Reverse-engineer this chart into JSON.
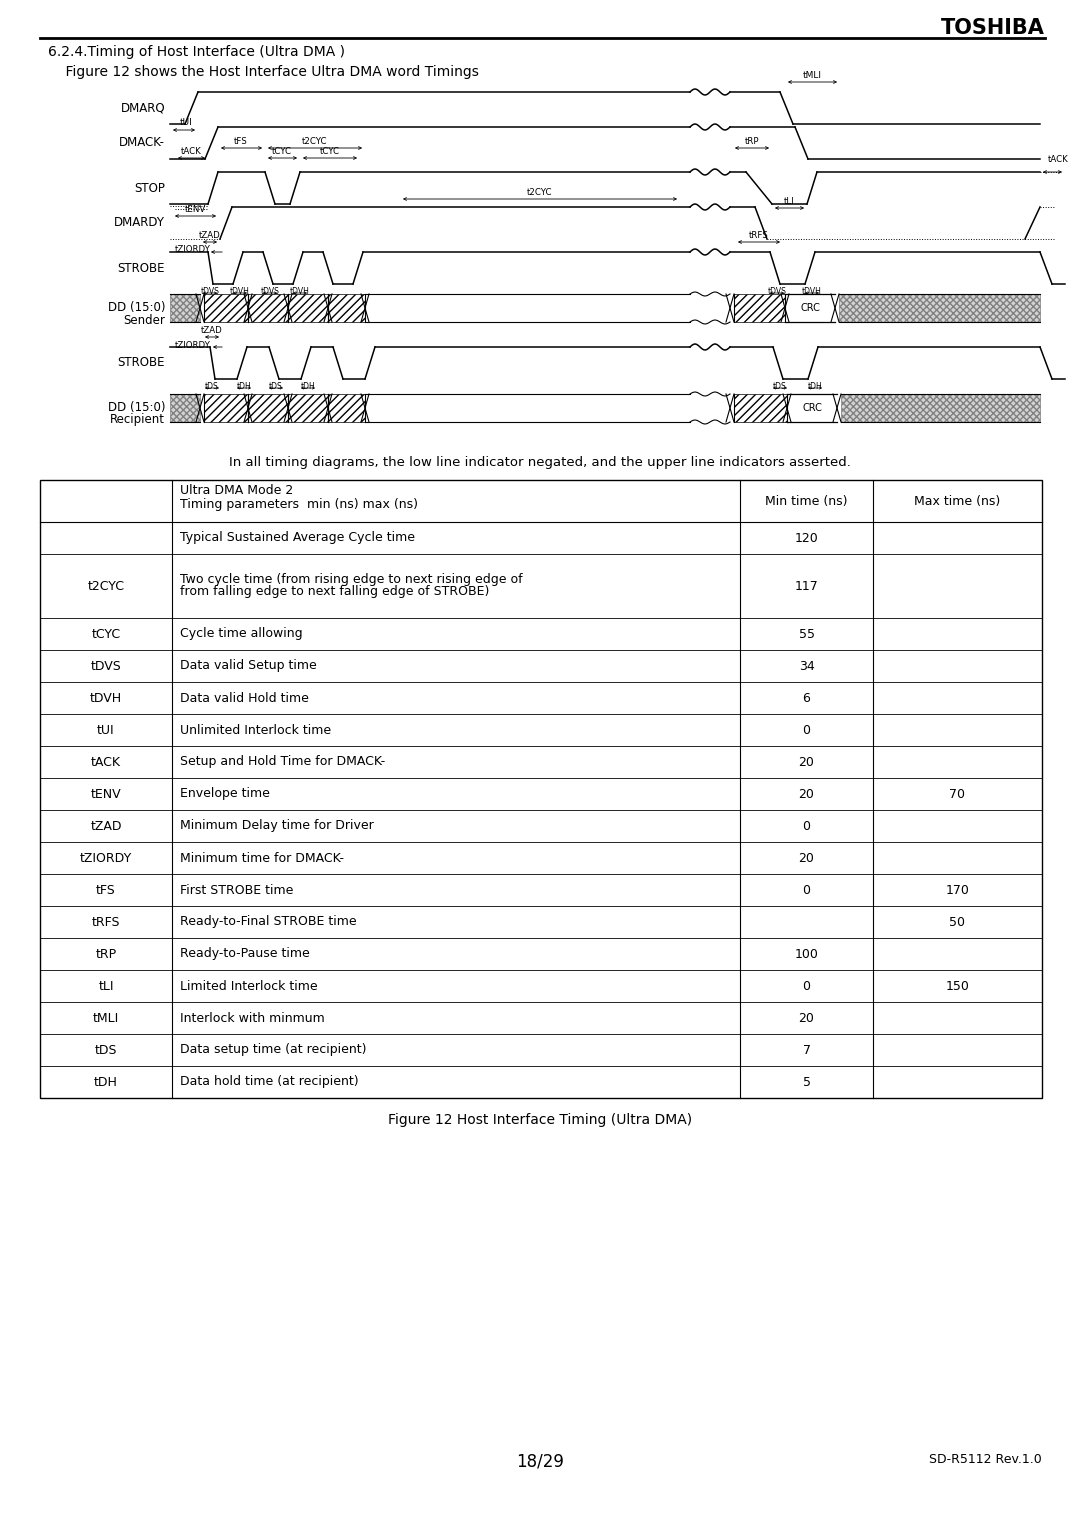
{
  "title_section": "6.2.4.Timing of Host Interface (Ultra DMA )",
  "subtitle": "    Figure 12 shows the Host Interface Ultra DMA word Timings",
  "header_text": "TOSHIBA",
  "note_text": "In all timing diagrams, the low line indicator negated, and the upper line indicators asserted.",
  "figure_caption": "Figure 12 Host Interface Timing (Ultra DMA)",
  "page_number": "18/29",
  "doc_ref": "SD-R5112 Rev.1.0",
  "table_header_col2_line1": "Ultra DMA Mode 2",
  "table_header_col2_line2": "Timing parameters  min (ns) max (ns)",
  "table_header_col3": "Min time (ns)",
  "table_header_col4": "Max time (ns)",
  "table_rows": [
    [
      "",
      "Typical Sustained Average Cycle time",
      "120",
      ""
    ],
    [
      "t2CYC",
      "Two cycle time (from rising edge to next rising edge of\nfrom falling edge to next falling edge of STROBE)",
      "117",
      ""
    ],
    [
      "tCYC",
      "Cycle time allowing",
      "55",
      ""
    ],
    [
      "tDVS",
      "Data valid Setup time",
      "34",
      ""
    ],
    [
      "tDVH",
      "Data valid Hold time",
      "6",
      ""
    ],
    [
      "tUI",
      "Unlimited Interlock time",
      "0",
      ""
    ],
    [
      "tACK",
      "Setup and Hold Time for DMACK-",
      "20",
      ""
    ],
    [
      "tENV",
      "Envelope time",
      "20",
      "70"
    ],
    [
      "tZAD",
      "Minimum Delay time for Driver",
      "0",
      ""
    ],
    [
      "tZIORDY",
      "Minimum time for DMACK-",
      "20",
      ""
    ],
    [
      "tFS",
      "First STROBE time",
      "0",
      "170"
    ],
    [
      "tRFS",
      "Ready-to-Final STROBE time",
      "",
      "50"
    ],
    [
      "tRP",
      "Ready-to-Pause time",
      "100",
      ""
    ],
    [
      "tLI",
      "Limited Interlock time",
      "0",
      "150"
    ],
    [
      "tMLI",
      "Interlock with minmum",
      "20",
      ""
    ],
    [
      "tDS",
      "Data setup time (at recipient)",
      "7",
      ""
    ],
    [
      "tDH",
      "Data hold time (at recipient)",
      "5",
      ""
    ]
  ]
}
